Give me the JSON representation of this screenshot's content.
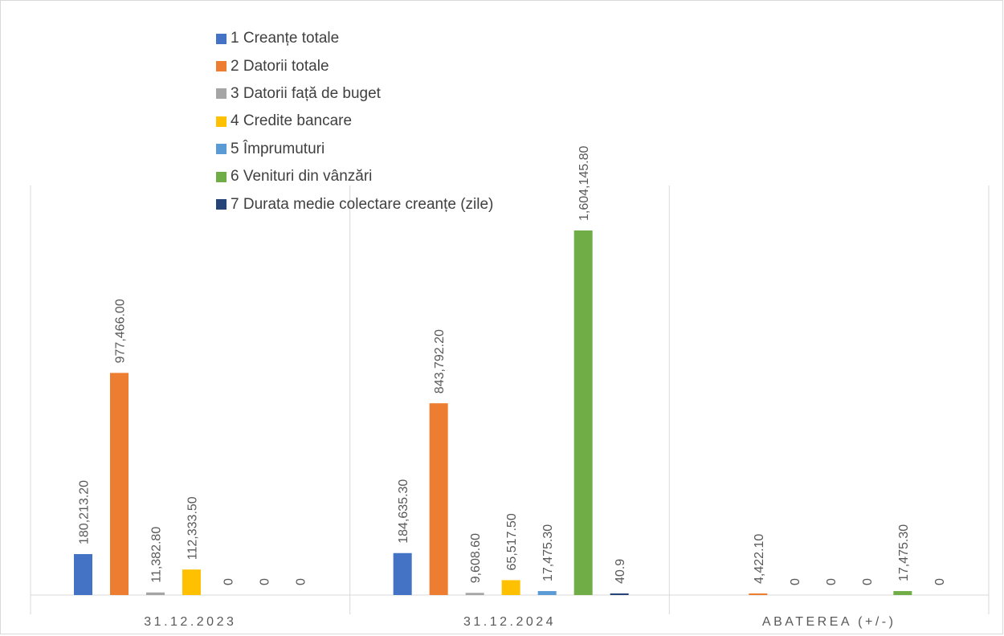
{
  "chart_data": {
    "type": "bar",
    "categories": [
      "31.12.2023",
      "31.12.2024",
      "ABATEREA (+/-)"
    ],
    "series": [
      {
        "name": "1 Creanțe totale",
        "color": "#4472C4",
        "values": [
          180213.2,
          184635.3,
          null
        ],
        "labels": [
          "180,213.20",
          "184,635.30",
          ""
        ]
      },
      {
        "name": "2 Datorii totale",
        "color": "#ED7D31",
        "values": [
          977466.0,
          843792.2,
          4422.1
        ],
        "labels": [
          "977,466.00",
          "843,792.20",
          "4,422.10"
        ]
      },
      {
        "name": "3 Datorii față de buget",
        "color": "#A5A5A5",
        "values": [
          11382.8,
          9608.6,
          0
        ],
        "labels": [
          "11,382.80",
          "9,608.60",
          "0"
        ]
      },
      {
        "name": "4 Credite bancare",
        "color": "#FFC000",
        "values": [
          112333.5,
          65517.5,
          0
        ],
        "labels": [
          "112,333.50",
          "65,517.50",
          "0"
        ]
      },
      {
        "name": "5 Împrumuturi",
        "color": "#5B9BD5",
        "values": [
          0,
          17475.3,
          0
        ],
        "labels": [
          "0",
          "17,475.30",
          "0"
        ]
      },
      {
        "name": "6 Venituri din vânzări",
        "color": "#70AD47",
        "values": [
          0,
          1604145.8,
          17475.3
        ],
        "labels": [
          "0",
          "1,604,145.80",
          "17,475.30"
        ]
      },
      {
        "name": "7 Durata medie colectare creanțe (zile)",
        "color": "#264478",
        "values": [
          0,
          40.9,
          0
        ],
        "labels": [
          "0",
          "40.9",
          "0"
        ]
      }
    ],
    "ylim": [
      0,
      1800000
    ],
    "legend_position": "top-left",
    "gridlines": "vertical category separators",
    "xlabel": "",
    "ylabel": ""
  }
}
